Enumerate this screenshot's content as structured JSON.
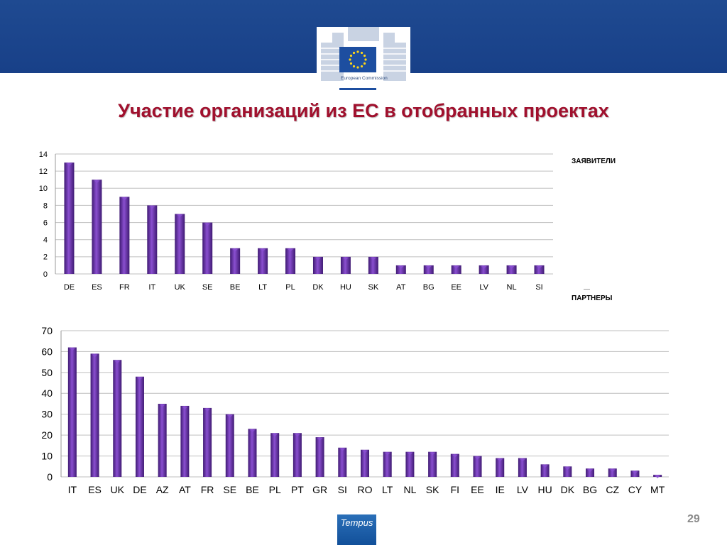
{
  "header": {
    "logo_text": "European Commission"
  },
  "slide": {
    "title": "Участие организаций из ЕС в отобранных проектах",
    "page_number": "29",
    "footer_logo": "Tempus"
  },
  "legend": {
    "applicants_label": "ЗАЯВИТЕЛИ",
    "partners_label": "ПАРТНЕРЫ"
  },
  "colors": {
    "header_band": "#1f4a91",
    "title": "#a0102d",
    "bar_dark": "#3f1a72",
    "bar_light": "#8a4fd0",
    "grid": "#bfbfbf"
  },
  "chart_data": [
    {
      "type": "bar",
      "title": "",
      "xlabel": "",
      "ylabel": "",
      "categories": [
        "DE",
        "ES",
        "FR",
        "IT",
        "UK",
        "SE",
        "BE",
        "LT",
        "PL",
        "DK",
        "HU",
        "SK",
        "AT",
        "BG",
        "EE",
        "LV",
        "NL",
        "SI"
      ],
      "values": [
        13,
        11,
        9,
        8,
        7,
        6,
        3,
        3,
        3,
        2,
        2,
        2,
        1,
        1,
        1,
        1,
        1,
        1
      ],
      "ylim": [
        0,
        14
      ],
      "yticks": [
        0,
        2,
        4,
        6,
        8,
        10,
        12,
        14
      ],
      "grid": true
    },
    {
      "type": "bar",
      "title": "",
      "xlabel": "",
      "ylabel": "",
      "categories": [
        "IT",
        "ES",
        "UK",
        "DE",
        "AZ",
        "AT",
        "FR",
        "SE",
        "BE",
        "PL",
        "PT",
        "GR",
        "SI",
        "RO",
        "LT",
        "NL",
        "SK",
        "FI",
        "EE",
        "IE",
        "LV",
        "HU",
        "DK",
        "BG",
        "CZ",
        "CY",
        "MT"
      ],
      "values": [
        62,
        59,
        56,
        48,
        35,
        34,
        33,
        30,
        23,
        21,
        21,
        19,
        14,
        13,
        12,
        12,
        12,
        11,
        10,
        9,
        9,
        6,
        5,
        4,
        4,
        3,
        1
      ],
      "ylim": [
        0,
        70
      ],
      "yticks": [
        0,
        10,
        20,
        30,
        40,
        50,
        60,
        70
      ],
      "grid": true
    }
  ]
}
